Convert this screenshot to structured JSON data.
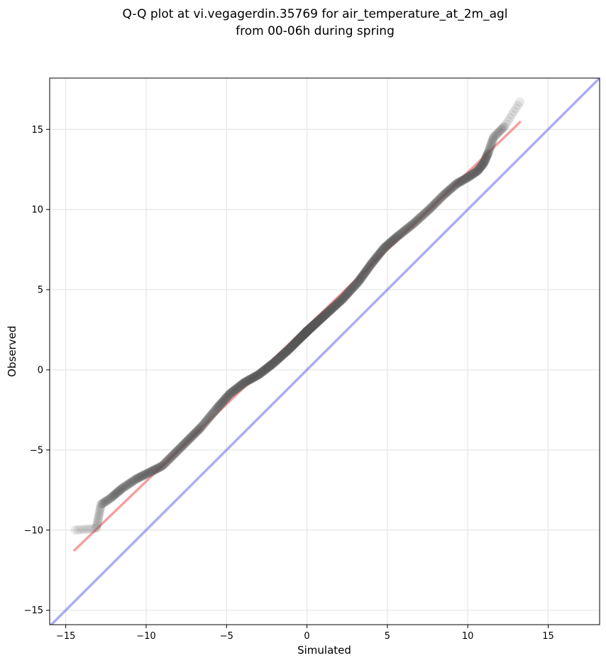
{
  "chart_data": {
    "type": "scatter",
    "title": "Q-Q plot at vi.vegagerdin.35769 for air_temperature_at_2m_agl",
    "subtitle": "from 00-06h during spring",
    "xlabel": "Simulated",
    "ylabel": "Observed",
    "xlim": [
      -16,
      18.2
    ],
    "ylim": [
      -15.9,
      18.2
    ],
    "xticks": [
      -15,
      -10,
      -5,
      0,
      5,
      10,
      15
    ],
    "yticks": [
      -15,
      -10,
      -5,
      0,
      5,
      10,
      15
    ],
    "xtick_labels": [
      "−15",
      "−10",
      "−5",
      "0",
      "5",
      "10",
      "15"
    ],
    "ytick_labels": [
      "−15",
      "−10",
      "−5",
      "0",
      "5",
      "10",
      "15"
    ],
    "grid": true,
    "quantile_anchors": {
      "x": [
        -14.5,
        -13.1,
        -12.8,
        -12.2,
        -11.5,
        -10.6,
        -9.8,
        -9.0,
        -8.2,
        -7.4,
        -6.6,
        -5.6,
        -4.8,
        -3.9,
        -3.0,
        -2.1,
        -1.1,
        0.0,
        1.1,
        2.2,
        3.2,
        4.0,
        4.8,
        5.6,
        6.6,
        7.6,
        8.5,
        9.3,
        10.0,
        10.6,
        11.0,
        11.3,
        11.6,
        12.3,
        13.3
      ],
      "y": [
        -10.0,
        -9.9,
        -8.4,
        -8.0,
        -7.4,
        -6.8,
        -6.4,
        -6.0,
        -5.2,
        -4.4,
        -3.6,
        -2.4,
        -1.5,
        -0.8,
        -0.3,
        0.4,
        1.3,
        2.4,
        3.4,
        4.4,
        5.5,
        6.6,
        7.6,
        8.3,
        9.1,
        10.0,
        10.9,
        11.6,
        12.0,
        12.4,
        12.9,
        13.6,
        14.5,
        15.2,
        16.8
      ],
      "n_points": 520
    },
    "series": [
      {
        "name": "",
        "kind": "scatter",
        "color": "#000000"
      },
      {
        "name": "",
        "kind": "line",
        "x": [
          -14.5,
          13.3
        ],
        "y": [
          -11.3,
          15.5
        ],
        "color": "#f08080"
      },
      {
        "name": "",
        "kind": "line",
        "x": [
          -16,
          18.2
        ],
        "y": [
          -16,
          18.2
        ],
        "color": "#8080f0"
      }
    ]
  }
}
